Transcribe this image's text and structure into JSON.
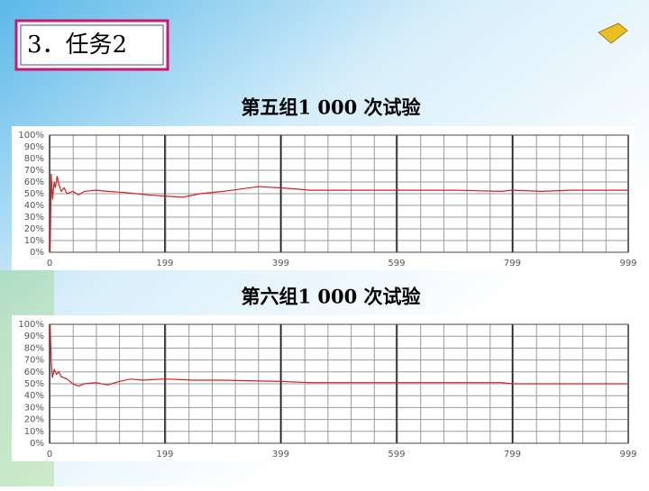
{
  "slide_title": "3．任务2",
  "chart_data": [
    {
      "type": "line",
      "title": "第五组1 000 次试验",
      "x": [
        1,
        3,
        5,
        8,
        10,
        13,
        16,
        20,
        25,
        30,
        40,
        50,
        60,
        80,
        100,
        130,
        150,
        170,
        199,
        230,
        260,
        300,
        330,
        360,
        400,
        450,
        500,
        599,
        700,
        780,
        799,
        850,
        900,
        999
      ],
      "series": [
        {
          "color": "#d42020",
          "values": [
            0,
            67,
            45,
            60,
            55,
            65,
            58,
            52,
            55,
            50,
            52,
            49,
            52,
            53,
            52,
            51,
            50,
            49,
            48,
            47,
            50,
            52,
            54,
            56,
            55,
            53,
            53,
            53,
            53,
            52,
            53,
            52,
            53,
            53
          ]
        }
      ],
      "xlim": [
        0,
        999
      ],
      "xticks": [
        0,
        199,
        399,
        599,
        799,
        999
      ],
      "ylim": [
        0,
        100
      ],
      "yticks": [
        {
          "value": 0,
          "label": "0%"
        },
        {
          "value": 10,
          "label": "10%"
        },
        {
          "value": 20,
          "label": "20%"
        },
        {
          "value": 30,
          "label": "30%"
        },
        {
          "value": 40,
          "label": "40%"
        },
        {
          "value": 50,
          "label": "50%"
        },
        {
          "value": 60,
          "label": "60%"
        },
        {
          "value": 70,
          "label": "70%"
        },
        {
          "value": 80,
          "label": "80%"
        },
        {
          "value": 90,
          "label": "90%"
        },
        {
          "value": 100,
          "label": "100%"
        }
      ],
      "grid": true
    },
    {
      "type": "line",
      "title": "第六组1 000 次试验",
      "x": [
        1,
        3,
        5,
        8,
        12,
        16,
        20,
        30,
        40,
        50,
        60,
        80,
        100,
        120,
        140,
        160,
        199,
        250,
        300,
        399,
        450,
        500,
        599,
        700,
        780,
        799,
        850,
        999
      ],
      "series": [
        {
          "color": "#d42020",
          "values": [
            100,
            67,
            55,
            62,
            58,
            60,
            56,
            54,
            50,
            48,
            50,
            51,
            49,
            52,
            54,
            53,
            54,
            53,
            53,
            52,
            51,
            51,
            51,
            51,
            51,
            50,
            50,
            50
          ]
        }
      ],
      "xlim": [
        0,
        999
      ],
      "xticks": [
        0,
        199,
        399,
        599,
        799,
        999
      ],
      "ylim": [
        0,
        100
      ],
      "yticks": [
        {
          "value": 0,
          "label": "0%"
        },
        {
          "value": 10,
          "label": "10%"
        },
        {
          "value": 20,
          "label": "20%"
        },
        {
          "value": 30,
          "label": "30%"
        },
        {
          "value": 40,
          "label": "40%"
        },
        {
          "value": 50,
          "label": "50%"
        },
        {
          "value": 60,
          "label": "60%"
        },
        {
          "value": 70,
          "label": "70%"
        },
        {
          "value": 80,
          "label": "80%"
        },
        {
          "value": 90,
          "label": "90%"
        },
        {
          "value": 100,
          "label": "100%"
        }
      ],
      "grid": true
    }
  ]
}
